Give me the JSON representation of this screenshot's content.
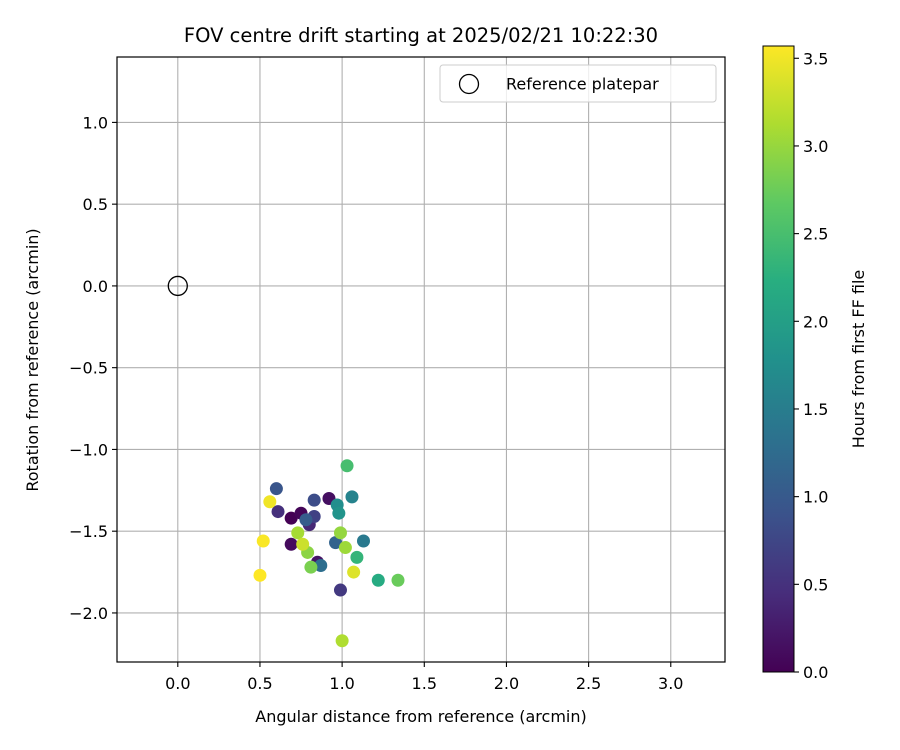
{
  "chart_data": {
    "type": "scatter",
    "title": "FOV centre drift starting at 2025/02/21 10:22:30",
    "xlabel": "Angular distance from reference (arcmin)",
    "ylabel": "Rotation from reference (arcmin)",
    "xlim": [
      -0.37,
      3.33
    ],
    "ylim": [
      -2.3,
      1.4
    ],
    "x_ticks": [
      0.0,
      0.5,
      1.0,
      1.5,
      2.0,
      2.5,
      3.0
    ],
    "x_tick_labels": [
      "0.0",
      "0.5",
      "1.0",
      "1.5",
      "2.0",
      "2.5",
      "3.0"
    ],
    "y_ticks": [
      1.0,
      0.5,
      0.0,
      -0.5,
      -1.0,
      -1.5,
      -2.0
    ],
    "y_tick_labels": [
      "1.0",
      "0.5",
      "0.0",
      "−0.5",
      "−1.0",
      "−1.5",
      "−2.0"
    ],
    "grid": true,
    "legend": {
      "position": "top-right",
      "entries": [
        {
          "name": "Reference platepar",
          "marker": "open-circle"
        }
      ]
    },
    "reference": {
      "x": 0.0,
      "y": 0.0
    },
    "colorbar": {
      "label": "Hours from first FF file",
      "range": [
        0.0,
        3.57
      ],
      "ticks": [
        0.0,
        0.5,
        1.0,
        1.5,
        2.0,
        2.5,
        3.0,
        3.5
      ],
      "tick_labels": [
        "0.0",
        "0.5",
        "1.0",
        "1.5",
        "2.0",
        "2.5",
        "3.0",
        "3.5"
      ],
      "colormap": "viridis"
    },
    "points": [
      {
        "x": 0.69,
        "y": -1.42,
        "hours": 0.0
      },
      {
        "x": 0.75,
        "y": -1.39,
        "hours": 0.05
      },
      {
        "x": 0.69,
        "y": -1.58,
        "hours": 0.1
      },
      {
        "x": 0.92,
        "y": -1.3,
        "hours": 0.15
      },
      {
        "x": 0.85,
        "y": -1.69,
        "hours": 0.2
      },
      {
        "x": 0.8,
        "y": -1.46,
        "hours": 0.4
      },
      {
        "x": 0.61,
        "y": -1.38,
        "hours": 0.5
      },
      {
        "x": 0.99,
        "y": -1.86,
        "hours": 0.6
      },
      {
        "x": 0.83,
        "y": -1.41,
        "hours": 0.7
      },
      {
        "x": 0.83,
        "y": -1.31,
        "hours": 0.85
      },
      {
        "x": 0.6,
        "y": -1.24,
        "hours": 0.95
      },
      {
        "x": 0.78,
        "y": -1.43,
        "hours": 1.05
      },
      {
        "x": 0.96,
        "y": -1.57,
        "hours": 1.15
      },
      {
        "x": 0.87,
        "y": -1.71,
        "hours": 1.3
      },
      {
        "x": 1.13,
        "y": -1.56,
        "hours": 1.45
      },
      {
        "x": 1.06,
        "y": -1.29,
        "hours": 1.6
      },
      {
        "x": 0.97,
        "y": -1.34,
        "hours": 1.75
      },
      {
        "x": 0.98,
        "y": -1.39,
        "hours": 1.85
      },
      {
        "x": 1.22,
        "y": -1.8,
        "hours": 2.2
      },
      {
        "x": 1.09,
        "y": -1.66,
        "hours": 2.35
      },
      {
        "x": 1.03,
        "y": -1.1,
        "hours": 2.5
      },
      {
        "x": 1.34,
        "y": -1.8,
        "hours": 2.75
      },
      {
        "x": 0.81,
        "y": -1.72,
        "hours": 2.85
      },
      {
        "x": 0.79,
        "y": -1.63,
        "hours": 2.95
      },
      {
        "x": 0.99,
        "y": -1.51,
        "hours": 3.0
      },
      {
        "x": 1.02,
        "y": -1.6,
        "hours": 3.05
      },
      {
        "x": 0.73,
        "y": -1.51,
        "hours": 3.1
      },
      {
        "x": 1.0,
        "y": -2.17,
        "hours": 3.15
      },
      {
        "x": 0.76,
        "y": -1.58,
        "hours": 3.3
      },
      {
        "x": 1.07,
        "y": -1.75,
        "hours": 3.4
      },
      {
        "x": 0.56,
        "y": -1.32,
        "hours": 3.5
      },
      {
        "x": 0.52,
        "y": -1.56,
        "hours": 3.55
      },
      {
        "x": 0.5,
        "y": -1.77,
        "hours": 3.57
      }
    ]
  }
}
